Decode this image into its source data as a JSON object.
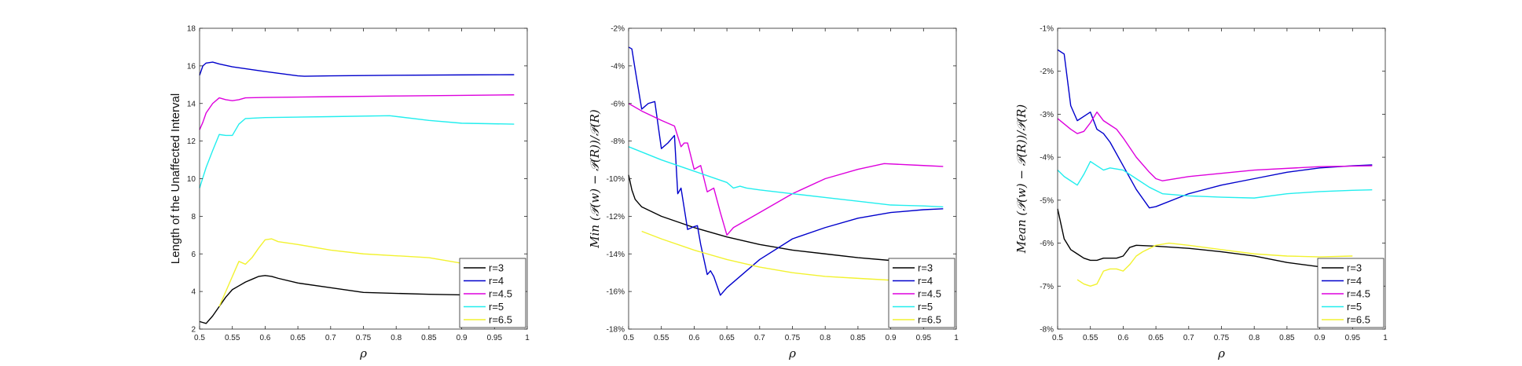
{
  "chart_data": [
    {
      "type": "line",
      "xlabel": "ρ",
      "ylabel": "Length of the Unaffected Interval",
      "xlim": [
        0.5,
        1
      ],
      "ylim": [
        2,
        18
      ],
      "xticks": [
        "0.5",
        "0.55",
        "0.6",
        "0.65",
        "0.7",
        "0.75",
        "0.8",
        "0.85",
        "0.9",
        "0.95",
        "1"
      ],
      "yticks": [
        "2",
        "4",
        "6",
        "8",
        "10",
        "12",
        "14",
        "16",
        "18"
      ],
      "ytick_values": [
        2,
        4,
        6,
        8,
        10,
        12,
        14,
        16,
        18
      ],
      "legend_position": "bottom-right",
      "series": [
        {
          "name": "r=3",
          "color": "#000000",
          "x": [
            0.5,
            0.505,
            0.51,
            0.52,
            0.53,
            0.54,
            0.55,
            0.56,
            0.57,
            0.58,
            0.59,
            0.6,
            0.61,
            0.62,
            0.65,
            0.7,
            0.75,
            0.8,
            0.85,
            0.9,
            0.95,
            0.98
          ],
          "y": [
            2.4,
            2.35,
            2.3,
            2.7,
            3.2,
            3.7,
            4.1,
            4.3,
            4.5,
            4.65,
            4.8,
            4.85,
            4.8,
            4.7,
            4.45,
            4.2,
            3.95,
            3.9,
            3.85,
            3.82,
            3.8,
            3.78
          ]
        },
        {
          "name": "r=4",
          "color": "#0000CC",
          "x": [
            0.5,
            0.505,
            0.51,
            0.52,
            0.53,
            0.55,
            0.6,
            0.65,
            0.66,
            0.7,
            0.8,
            0.9,
            0.98
          ],
          "y": [
            15.5,
            16.0,
            16.15,
            16.2,
            16.1,
            15.95,
            15.7,
            15.47,
            15.45,
            15.47,
            15.5,
            15.52,
            15.53
          ]
        },
        {
          "name": "r=4.5",
          "color": "#DD00DD",
          "x": [
            0.5,
            0.505,
            0.51,
            0.52,
            0.53,
            0.54,
            0.55,
            0.56,
            0.57,
            0.6,
            0.7,
            0.8,
            0.9,
            0.98
          ],
          "y": [
            12.6,
            13.0,
            13.5,
            14.0,
            14.3,
            14.2,
            14.15,
            14.2,
            14.3,
            14.32,
            14.36,
            14.4,
            14.43,
            14.46
          ]
        },
        {
          "name": "r=5",
          "color": "#22EEEE",
          "x": [
            0.5,
            0.51,
            0.52,
            0.53,
            0.54,
            0.55,
            0.56,
            0.57,
            0.6,
            0.7,
            0.79,
            0.85,
            0.9,
            0.98
          ],
          "y": [
            9.5,
            10.6,
            11.5,
            12.35,
            12.3,
            12.3,
            12.9,
            13.2,
            13.25,
            13.3,
            13.35,
            13.1,
            12.95,
            12.9
          ]
        },
        {
          "name": "r=6.5",
          "color": "#F2F230",
          "x": [
            0.53,
            0.54,
            0.55,
            0.56,
            0.57,
            0.58,
            0.59,
            0.6,
            0.61,
            0.62,
            0.65,
            0.7,
            0.75,
            0.8,
            0.85,
            0.9,
            0.95
          ],
          "y": [
            3.2,
            4.0,
            4.8,
            5.6,
            5.45,
            5.8,
            6.3,
            6.75,
            6.8,
            6.65,
            6.5,
            6.2,
            6.0,
            5.9,
            5.8,
            5.5,
            5.4
          ]
        }
      ]
    },
    {
      "type": "line",
      "xlabel": "ρ",
      "ylabel": "Min (𝒫(w) − 𝒫(R))/𝒫(R)",
      "xlim": [
        0.5,
        1
      ],
      "ylim": [
        -18,
        -2
      ],
      "xticks": [
        "0.5",
        "0.55",
        "0.6",
        "0.65",
        "0.7",
        "0.75",
        "0.8",
        "0.85",
        "0.9",
        "0.95",
        "1"
      ],
      "yticks": [
        "-18%",
        "-16%",
        "-14%",
        "-12%",
        "-10%",
        "-8%",
        "-6%",
        "-4%",
        "-2%"
      ],
      "ytick_values": [
        -18,
        -16,
        -14,
        -12,
        -10,
        -8,
        -6,
        -4,
        -2
      ],
      "legend_position": "bottom-right",
      "series": [
        {
          "name": "r=3",
          "color": "#000000",
          "x": [
            0.5,
            0.505,
            0.51,
            0.52,
            0.55,
            0.6,
            0.65,
            0.7,
            0.75,
            0.8,
            0.85,
            0.9,
            0.95,
            0.98
          ],
          "y": [
            -9.8,
            -10.6,
            -11.1,
            -11.5,
            -12.0,
            -12.6,
            -13.1,
            -13.5,
            -13.8,
            -14.0,
            -14.2,
            -14.35,
            -14.45,
            -14.5
          ]
        },
        {
          "name": "r=4",
          "color": "#0000CC",
          "x": [
            0.5,
            0.505,
            0.51,
            0.52,
            0.53,
            0.54,
            0.55,
            0.56,
            0.57,
            0.575,
            0.58,
            0.59,
            0.6,
            0.605,
            0.61,
            0.62,
            0.625,
            0.63,
            0.64,
            0.65,
            0.7,
            0.75,
            0.8,
            0.85,
            0.9,
            0.95,
            0.98
          ],
          "y": [
            -3.0,
            -3.1,
            -4.2,
            -6.3,
            -6.0,
            -5.9,
            -8.4,
            -8.1,
            -7.7,
            -10.8,
            -10.5,
            -12.7,
            -12.55,
            -12.5,
            -13.5,
            -15.1,
            -14.9,
            -15.2,
            -16.2,
            -15.8,
            -14.3,
            -13.2,
            -12.6,
            -12.1,
            -11.8,
            -11.65,
            -11.6
          ]
        },
        {
          "name": "r=4.5",
          "color": "#DD00DD",
          "x": [
            0.5,
            0.52,
            0.55,
            0.57,
            0.58,
            0.585,
            0.59,
            0.6,
            0.61,
            0.62,
            0.63,
            0.64,
            0.65,
            0.66,
            0.7,
            0.75,
            0.8,
            0.85,
            0.89,
            0.95,
            0.98
          ],
          "y": [
            -6.0,
            -6.4,
            -6.9,
            -7.2,
            -8.3,
            -8.1,
            -8.1,
            -9.5,
            -9.3,
            -10.7,
            -10.5,
            -11.8,
            -13.0,
            -12.6,
            -11.8,
            -10.8,
            -10.0,
            -9.5,
            -9.2,
            -9.3,
            -9.35
          ]
        },
        {
          "name": "r=5",
          "color": "#22EEEE",
          "x": [
            0.5,
            0.55,
            0.6,
            0.65,
            0.66,
            0.67,
            0.68,
            0.7,
            0.75,
            0.8,
            0.85,
            0.9,
            0.95,
            0.98
          ],
          "y": [
            -8.3,
            -9.0,
            -9.6,
            -10.2,
            -10.5,
            -10.4,
            -10.5,
            -10.6,
            -10.8,
            -11.0,
            -11.2,
            -11.4,
            -11.45,
            -11.5
          ]
        },
        {
          "name": "r=6.5",
          "color": "#F2F230",
          "x": [
            0.52,
            0.55,
            0.6,
            0.65,
            0.7,
            0.75,
            0.8,
            0.85,
            0.9,
            0.95
          ],
          "y": [
            -12.8,
            -13.2,
            -13.8,
            -14.3,
            -14.7,
            -15.0,
            -15.2,
            -15.3,
            -15.4,
            -15.5
          ]
        }
      ]
    },
    {
      "type": "line",
      "xlabel": "ρ",
      "ylabel": "Mean (𝒫(w) − 𝒫(R))/𝒫(R)",
      "xlim": [
        0.5,
        1
      ],
      "ylim": [
        -8,
        -1
      ],
      "xticks": [
        "0.5",
        "0.55",
        "0.6",
        "0.65",
        "0.7",
        "0.75",
        "0.8",
        "0.85",
        "0.9",
        "0.95",
        "1"
      ],
      "yticks": [
        "-8%",
        "-7%",
        "-6%",
        "-5%",
        "-4%",
        "-3%",
        "-2%",
        "-1%"
      ],
      "ytick_values": [
        -8,
        -7,
        -6,
        -5,
        -4,
        -3,
        -2,
        -1
      ],
      "legend_position": "bottom-right",
      "series": [
        {
          "name": "r=3",
          "color": "#000000",
          "x": [
            0.5,
            0.51,
            0.52,
            0.53,
            0.54,
            0.55,
            0.56,
            0.57,
            0.58,
            0.59,
            0.6,
            0.61,
            0.62,
            0.65,
            0.7,
            0.75,
            0.8,
            0.85,
            0.9,
            0.95,
            0.98
          ],
          "y": [
            -5.2,
            -5.9,
            -6.15,
            -6.25,
            -6.35,
            -6.4,
            -6.4,
            -6.35,
            -6.35,
            -6.35,
            -6.3,
            -6.1,
            -6.05,
            -6.07,
            -6.12,
            -6.2,
            -6.3,
            -6.45,
            -6.55,
            -6.6,
            -6.62
          ]
        },
        {
          "name": "r=4",
          "color": "#0000CC",
          "x": [
            0.5,
            0.51,
            0.52,
            0.53,
            0.54,
            0.55,
            0.56,
            0.57,
            0.58,
            0.6,
            0.62,
            0.64,
            0.65,
            0.7,
            0.75,
            0.8,
            0.85,
            0.9,
            0.95,
            0.98
          ],
          "y": [
            -1.5,
            -1.6,
            -2.8,
            -3.15,
            -3.05,
            -2.95,
            -3.35,
            -3.45,
            -3.65,
            -4.2,
            -4.75,
            -5.18,
            -5.15,
            -4.85,
            -4.65,
            -4.5,
            -4.35,
            -4.25,
            -4.2,
            -4.18
          ]
        },
        {
          "name": "r=4.5",
          "color": "#DD00DD",
          "x": [
            0.5,
            0.52,
            0.53,
            0.54,
            0.55,
            0.56,
            0.57,
            0.58,
            0.59,
            0.6,
            0.62,
            0.64,
            0.65,
            0.66,
            0.7,
            0.8,
            0.9,
            0.98
          ],
          "y": [
            -3.1,
            -3.35,
            -3.45,
            -3.4,
            -3.2,
            -2.95,
            -3.15,
            -3.25,
            -3.35,
            -3.55,
            -4.0,
            -4.35,
            -4.5,
            -4.55,
            -4.45,
            -4.3,
            -4.22,
            -4.2
          ]
        },
        {
          "name": "r=5",
          "color": "#22EEEE",
          "x": [
            0.5,
            0.51,
            0.52,
            0.53,
            0.54,
            0.55,
            0.56,
            0.57,
            0.58,
            0.6,
            0.62,
            0.64,
            0.66,
            0.7,
            0.75,
            0.8,
            0.85,
            0.9,
            0.95,
            0.98
          ],
          "y": [
            -4.3,
            -4.45,
            -4.55,
            -4.65,
            -4.4,
            -4.1,
            -4.2,
            -4.3,
            -4.25,
            -4.3,
            -4.5,
            -4.7,
            -4.85,
            -4.9,
            -4.93,
            -4.95,
            -4.85,
            -4.8,
            -4.77,
            -4.76
          ]
        },
        {
          "name": "r=6.5",
          "color": "#F2F230",
          "x": [
            0.53,
            0.54,
            0.55,
            0.56,
            0.57,
            0.58,
            0.59,
            0.6,
            0.61,
            0.62,
            0.63,
            0.65,
            0.67,
            0.7,
            0.75,
            0.8,
            0.85,
            0.9,
            0.95
          ],
          "y": [
            -6.85,
            -6.95,
            -7.0,
            -6.95,
            -6.65,
            -6.6,
            -6.6,
            -6.65,
            -6.5,
            -6.3,
            -6.2,
            -6.05,
            -6.0,
            -6.05,
            -6.15,
            -6.25,
            -6.3,
            -6.32,
            -6.3
          ]
        }
      ]
    }
  ]
}
